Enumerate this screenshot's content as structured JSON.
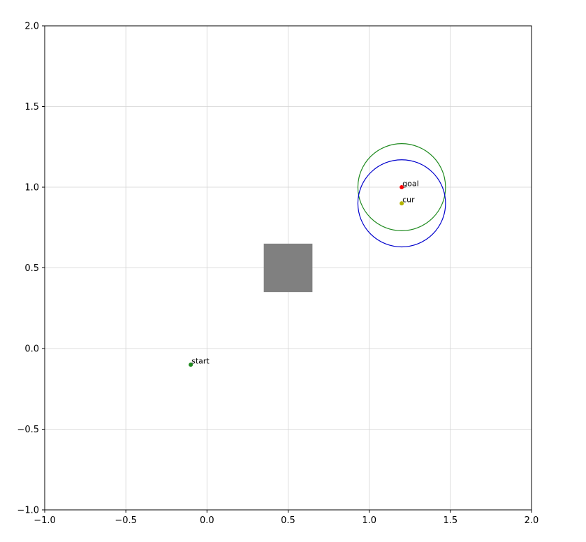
{
  "chart_data": {
    "type": "scatter",
    "title": "",
    "xlabel": "",
    "ylabel": "",
    "xlim": [
      -1.0,
      2.0
    ],
    "ylim": [
      -1.0,
      2.0
    ],
    "grid": true,
    "x_ticks": [
      -1.0,
      -0.5,
      0.0,
      0.5,
      1.0,
      1.5,
      2.0
    ],
    "y_ticks": [
      -1.0,
      -0.5,
      0.0,
      0.5,
      1.0,
      1.5,
      2.0
    ],
    "x_tick_labels": [
      "−1.0",
      "−0.5",
      "0.0",
      "0.5",
      "1.0",
      "1.5",
      "2.0"
    ],
    "y_tick_labels": [
      "−1.0",
      "−0.5",
      "0.0",
      "0.5",
      "1.0",
      "1.5",
      "2.0"
    ],
    "obstacle": {
      "x_range": [
        0.35,
        0.65
      ],
      "y_range": [
        0.35,
        0.65
      ],
      "color": "#808080"
    },
    "points": [
      {
        "label": "start",
        "x": -0.1,
        "y": -0.1,
        "color": "#1f8a1f"
      },
      {
        "label": "goal",
        "x": 1.2,
        "y": 1.0,
        "color": "#ff0000"
      },
      {
        "label": "cur",
        "x": 1.2,
        "y": 0.9,
        "color": "#b5b500"
      }
    ],
    "circles": [
      {
        "cx": 1.2,
        "cy": 1.0,
        "r": 0.27,
        "color": "#1f8a1f"
      },
      {
        "cx": 1.2,
        "cy": 0.9,
        "r": 0.27,
        "color": "#0000cc"
      }
    ]
  }
}
